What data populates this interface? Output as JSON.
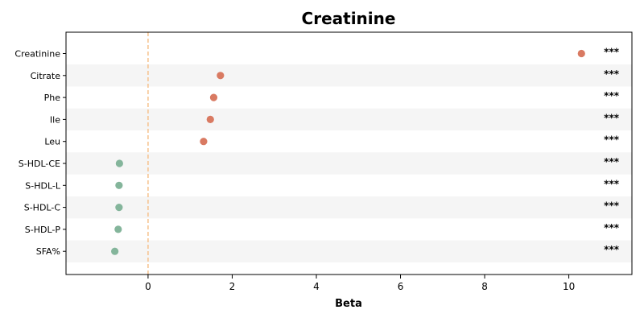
{
  "chart_data": {
    "type": "scatter",
    "title": "Creatinine",
    "xlabel": "Beta",
    "ylabel": "",
    "xlim": [
      -1.95,
      11.5
    ],
    "xticks": [
      0,
      2,
      4,
      6,
      8,
      10
    ],
    "categories": [
      "Creatinine",
      "Citrate",
      "Phe",
      "Ile",
      "Leu",
      "S-HDL-CE",
      "S-HDL-L",
      "S-HDL-C",
      "S-HDL-P",
      "SFA%"
    ],
    "values": [
      10.3,
      1.72,
      1.56,
      1.48,
      1.32,
      -0.68,
      -0.69,
      -0.69,
      -0.71,
      -0.79
    ],
    "significance": [
      "***",
      "***",
      "***",
      "***",
      "***",
      "***",
      "***",
      "***",
      "***",
      "***"
    ],
    "reference_line": 0,
    "grid": false,
    "alternating_row_bands": true,
    "colors": {
      "positive": "#d97a62",
      "negative": "#84b59b",
      "reference_line": "#f6c18c",
      "row_band": "#f5f5f5"
    }
  }
}
